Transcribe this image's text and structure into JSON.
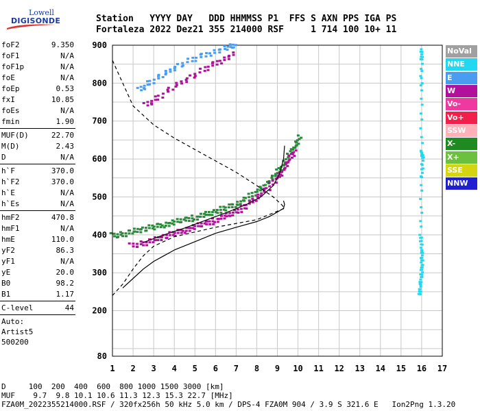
{
  "brand": {
    "line1": "Lowell",
    "line2": "DIGISONDE"
  },
  "header": {
    "labels_row": "Station   YYYY DAY   DDD HHMMSS P1  FFS S AXN PPS IGA PS",
    "values_row": "Fortaleza 2022 Dez21 355 214000 RSF     1 714 100 10+ 11"
  },
  "params": {
    "group1": [
      {
        "name": "foF2",
        "value": "9.350"
      },
      {
        "name": "foF1",
        "value": "N/A"
      },
      {
        "name": "foF1p",
        "value": "N/A"
      },
      {
        "name": "foE",
        "value": "N/A"
      },
      {
        "name": "foEp",
        "value": "0.53"
      },
      {
        "name": "fxI",
        "value": "10.85"
      },
      {
        "name": "foEs",
        "value": "N/A"
      },
      {
        "name": "fmin",
        "value": "1.90"
      }
    ],
    "group2": [
      {
        "name": "MUF(D)",
        "value": "22.70"
      },
      {
        "name": "M(D)",
        "value": "2.43"
      },
      {
        "name": "D",
        "value": "N/A"
      }
    ],
    "group3": [
      {
        "name": "h`F",
        "value": "370.0"
      },
      {
        "name": "h`F2",
        "value": "370.0"
      },
      {
        "name": "h`E",
        "value": "N/A"
      },
      {
        "name": "h`Es",
        "value": "N/A"
      }
    ],
    "group4": [
      {
        "name": "hmF2",
        "value": "470.8"
      },
      {
        "name": "hmF1",
        "value": "N/A"
      },
      {
        "name": "hmE",
        "value": "110.0"
      },
      {
        "name": "yF2",
        "value": "86.3"
      },
      {
        "name": "yF1",
        "value": "N/A"
      },
      {
        "name": "yE",
        "value": "20.0"
      },
      {
        "name": "B0",
        "value": "98.2"
      },
      {
        "name": "B1",
        "value": "1.17"
      }
    ],
    "group5": [
      {
        "name": "C-level",
        "value": "44"
      }
    ],
    "extra": [
      "Auto:",
      "Artist5",
      "500200"
    ]
  },
  "legend": [
    {
      "label": "NoVal",
      "color": "#a0a0a0"
    },
    {
      "label": "NNE",
      "color": "#22d8f0"
    },
    {
      "label": "E",
      "color": "#4a9cf0"
    },
    {
      "label": "W",
      "color": "#b0109a"
    },
    {
      "label": "Vo-",
      "color": "#ee3aa0"
    },
    {
      "label": "Vo+",
      "color": "#f0204a"
    },
    {
      "label": "SSW",
      "color": "#ffb0b8"
    },
    {
      "label": "X-",
      "color": "#1f8a1f"
    },
    {
      "label": "X+",
      "color": "#6cc040"
    },
    {
      "label": "SSE",
      "color": "#d4d410"
    },
    {
      "label": "NNW",
      "color": "#2020d0"
    }
  ],
  "footer": {
    "line1": "D     100  200  400  600  800 1000 1500 3000 [km]",
    "line2": "MUF    9.7  9.8 10.1 10.6 11.3 12.3 15.3 22.7 [MHz]",
    "line3": "FZA0M_2022355214000.RSF / 320fx256h 50 kHz 5.0 km / DPS-4 FZA0M 904 / 3.9 S 321.6 E   Ion2Png 1.3.20"
  },
  "chart_data": {
    "type": "scatter",
    "xlim": [
      1,
      17
    ],
    "ylim": [
      80,
      900
    ],
    "x_ticks": [
      1,
      2,
      3,
      4,
      5,
      6,
      7,
      8,
      9,
      10,
      11,
      12,
      13,
      14,
      15,
      16,
      17
    ],
    "y_ticks": [
      80,
      200,
      300,
      400,
      500,
      600,
      700,
      800,
      900
    ],
    "grid": true,
    "legend_position": "right",
    "traces": [
      {
        "name": "O-trace",
        "color": "#2a8a3a",
        "points": [
          [
            1.0,
            397
          ],
          [
            1.5,
            400
          ],
          [
            2.0,
            408
          ],
          [
            2.5,
            414
          ],
          [
            3.0,
            420
          ],
          [
            3.5,
            426
          ],
          [
            4.0,
            432
          ],
          [
            4.5,
            438
          ],
          [
            5.0,
            444
          ],
          [
            5.5,
            452
          ],
          [
            6.0,
            460
          ],
          [
            6.5,
            470
          ],
          [
            7.0,
            480
          ],
          [
            7.5,
            494
          ],
          [
            8.0,
            512
          ],
          [
            8.5,
            535
          ],
          [
            9.0,
            562
          ],
          [
            9.3,
            585
          ],
          [
            9.6,
            612
          ],
          [
            9.9,
            638
          ],
          [
            10.1,
            660
          ]
        ]
      },
      {
        "name": "X-trace",
        "color": "#b0109a",
        "points": [
          [
            1.9,
            370
          ],
          [
            2.5,
            376
          ],
          [
            3.0,
            385
          ],
          [
            3.5,
            394
          ],
          [
            4.0,
            403
          ],
          [
            4.5,
            412
          ],
          [
            5.0,
            420
          ],
          [
            5.5,
            428
          ],
          [
            6.0,
            437
          ],
          [
            6.5,
            448
          ],
          [
            7.0,
            460
          ],
          [
            7.5,
            475
          ],
          [
            8.0,
            498
          ],
          [
            8.5,
            520
          ],
          [
            9.0,
            548
          ],
          [
            9.3,
            570
          ],
          [
            9.6,
            598
          ],
          [
            9.9,
            625
          ]
        ]
      },
      {
        "name": "Spread-F",
        "color": "#4a9cf0",
        "points": [
          [
            2.3,
            780
          ],
          [
            2.8,
            800
          ],
          [
            3.5,
            822
          ],
          [
            4.2,
            845
          ],
          [
            5.0,
            864
          ],
          [
            5.8,
            880
          ],
          [
            6.6,
            893
          ],
          [
            7.0,
            898
          ]
        ]
      },
      {
        "name": "W-scatter",
        "color": "#b0109a",
        "points": [
          [
            2.6,
            740
          ],
          [
            3.2,
            760
          ],
          [
            4.0,
            790
          ],
          [
            4.8,
            815
          ],
          [
            5.6,
            840
          ],
          [
            6.3,
            860
          ],
          [
            7.0,
            878
          ]
        ]
      },
      {
        "name": "Vertical-16",
        "color": "#22d8f0",
        "points": [
          [
            15.9,
            240
          ],
          [
            15.95,
            270
          ],
          [
            16.0,
            300
          ],
          [
            16.02,
            330
          ],
          [
            16.0,
            360
          ],
          [
            15.95,
            400
          ],
          [
            16.0,
            550
          ],
          [
            16.05,
            600
          ],
          [
            16.0,
            620
          ],
          [
            15.98,
            780
          ],
          [
            16.0,
            860
          ],
          [
            16.0,
            890
          ]
        ]
      }
    ],
    "profile": {
      "color": "#000000",
      "points": [
        [
          1.5,
          260
        ],
        [
          2.0,
          285
        ],
        [
          2.5,
          310
        ],
        [
          3.0,
          330
        ],
        [
          3.5,
          345
        ],
        [
          4.0,
          360
        ],
        [
          5.0,
          382
        ],
        [
          6.0,
          404
        ],
        [
          7.0,
          420
        ],
        [
          8.0,
          435
        ],
        [
          8.6,
          448
        ],
        [
          9.0,
          460
        ],
        [
          9.3,
          470
        ],
        [
          9.35,
          480
        ],
        [
          9.3,
          490
        ]
      ]
    },
    "f2_curve": {
      "color": "#000000",
      "points": [
        [
          2.5,
          380
        ],
        [
          3.5,
          400
        ],
        [
          4.5,
          418
        ],
        [
          5.5,
          438
        ],
        [
          6.5,
          458
        ],
        [
          7.5,
          480
        ],
        [
          8.2,
          500
        ],
        [
          8.8,
          530
        ],
        [
          9.1,
          560
        ],
        [
          9.3,
          600
        ],
        [
          9.35,
          635
        ]
      ]
    },
    "dashed": {
      "color": "#000000",
      "points": [
        [
          1.0,
          860
        ],
        [
          1.5,
          800
        ],
        [
          2.0,
          740
        ],
        [
          3.0,
          690
        ],
        [
          4.0,
          655
        ],
        [
          5.0,
          625
        ],
        [
          6.0,
          595
        ],
        [
          7.0,
          565
        ],
        [
          8.0,
          530
        ],
        [
          8.8,
          500
        ],
        [
          9.2,
          480
        ],
        [
          9.35,
          470
        ],
        [
          8.0,
          440
        ],
        [
          6.0,
          420
        ],
        [
          4.0,
          395
        ],
        [
          3.0,
          370
        ],
        [
          2.5,
          345
        ],
        [
          2.0,
          310
        ],
        [
          1.5,
          270
        ],
        [
          1.0,
          240
        ]
      ]
    }
  }
}
